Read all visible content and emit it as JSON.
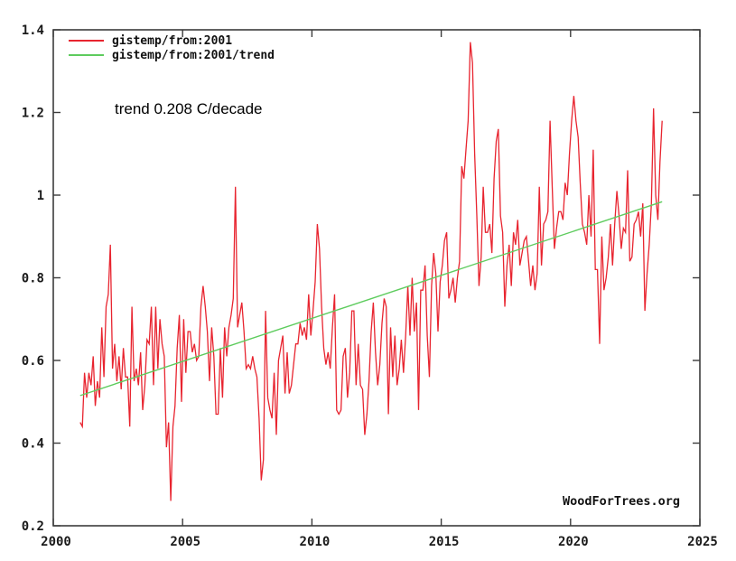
{
  "chart_data": {
    "type": "line",
    "title": "",
    "xlabel": "",
    "ylabel": "",
    "xlim": [
      2000,
      2025
    ],
    "ylim": [
      0.2,
      1.4
    ],
    "x_ticks": [
      "2000",
      "2005",
      "2010",
      "2015",
      "2020",
      "2025"
    ],
    "y_ticks": [
      "0.2",
      "0.4",
      "0.6",
      "0.8",
      "1",
      "1.2",
      "1.4"
    ],
    "grid": false,
    "legend_position": "top-left-inside",
    "frame_color": "#3c3c3c",
    "text_color": "#1a1a1a",
    "annotation": "trend 0.208 C/decade",
    "watermark": "WoodForTrees.org",
    "legend": [
      {
        "label": "gistemp/from:2001",
        "color": "#e8242f"
      },
      {
        "label": "gistemp/from:2001/trend",
        "color": "#5ecc5e"
      }
    ],
    "series": [
      {
        "name": "gistemp/from:2001",
        "kind": "monthly",
        "color": "#e8242f",
        "start_year": 2001,
        "values": [
          0.45,
          0.44,
          0.57,
          0.51,
          0.57,
          0.54,
          0.61,
          0.49,
          0.55,
          0.51,
          0.68,
          0.56,
          0.73,
          0.76,
          0.88,
          0.58,
          0.64,
          0.55,
          0.61,
          0.53,
          0.63,
          0.56,
          0.56,
          0.44,
          0.73,
          0.55,
          0.58,
          0.54,
          0.62,
          0.48,
          0.54,
          0.65,
          0.64,
          0.73,
          0.54,
          0.73,
          0.58,
          0.7,
          0.64,
          0.61,
          0.39,
          0.45,
          0.26,
          0.44,
          0.49,
          0.63,
          0.71,
          0.5,
          0.7,
          0.57,
          0.67,
          0.67,
          0.62,
          0.64,
          0.6,
          0.61,
          0.73,
          0.78,
          0.73,
          0.67,
          0.55,
          0.68,
          0.61,
          0.47,
          0.47,
          0.63,
          0.51,
          0.68,
          0.61,
          0.68,
          0.71,
          0.75,
          1.02,
          0.68,
          0.71,
          0.74,
          0.67,
          0.58,
          0.59,
          0.58,
          0.61,
          0.58,
          0.56,
          0.46,
          0.31,
          0.36,
          0.72,
          0.51,
          0.48,
          0.46,
          0.57,
          0.42,
          0.6,
          0.63,
          0.66,
          0.52,
          0.62,
          0.52,
          0.54,
          0.59,
          0.64,
          0.64,
          0.69,
          0.66,
          0.68,
          0.65,
          0.76,
          0.66,
          0.72,
          0.79,
          0.93,
          0.87,
          0.73,
          0.63,
          0.59,
          0.62,
          0.58,
          0.68,
          0.76,
          0.48,
          0.47,
          0.48,
          0.61,
          0.63,
          0.51,
          0.57,
          0.72,
          0.72,
          0.54,
          0.64,
          0.54,
          0.53,
          0.42,
          0.47,
          0.55,
          0.67,
          0.74,
          0.62,
          0.54,
          0.59,
          0.69,
          0.75,
          0.73,
          0.47,
          0.68,
          0.56,
          0.66,
          0.54,
          0.58,
          0.65,
          0.57,
          0.66,
          0.78,
          0.66,
          0.8,
          0.67,
          0.74,
          0.48,
          0.77,
          0.77,
          0.83,
          0.66,
          0.56,
          0.78,
          0.86,
          0.81,
          0.67,
          0.79,
          0.83,
          0.89,
          0.91,
          0.75,
          0.77,
          0.8,
          0.74,
          0.8,
          0.84,
          1.07,
          1.04,
          1.11,
          1.18,
          1.37,
          1.32,
          1.1,
          0.95,
          0.78,
          0.85,
          1.02,
          0.91,
          0.91,
          0.93,
          0.86,
          1.04,
          1.13,
          1.16,
          0.95,
          0.91,
          0.73,
          0.83,
          0.88,
          0.78,
          0.91,
          0.88,
          0.94,
          0.83,
          0.86,
          0.89,
          0.9,
          0.84,
          0.78,
          0.83,
          0.77,
          0.81,
          1.02,
          0.83,
          0.93,
          0.94,
          0.96,
          1.18,
          1.02,
          0.87,
          0.92,
          0.96,
          0.96,
          0.94,
          1.03,
          1.0,
          1.1,
          1.18,
          1.24,
          1.18,
          1.14,
          1.03,
          0.93,
          0.91,
          0.88,
          1.0,
          0.9,
          1.11,
          0.82,
          0.82,
          0.64,
          0.9,
          0.77,
          0.8,
          0.85,
          0.93,
          0.83,
          0.93,
          1.01,
          0.95,
          0.87,
          0.92,
          0.91,
          1.06,
          0.84,
          0.85,
          0.93,
          0.94,
          0.96,
          0.9,
          0.98,
          0.72,
          0.81,
          0.88,
          0.98,
          1.21,
          1.0,
          0.94,
          1.08,
          1.18
        ]
      },
      {
        "name": "gistemp/from:2001/trend",
        "kind": "trend",
        "color": "#5ecc5e",
        "x0": 2001.04,
        "y0": 0.515,
        "x1": 2023.54,
        "y1": 0.984,
        "slope_per_decade": 0.208
      }
    ]
  }
}
